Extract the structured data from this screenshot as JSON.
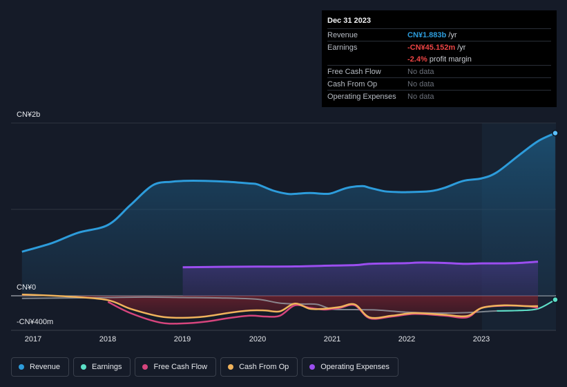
{
  "tooltip": {
    "date": "Dec 31 2023",
    "rows": [
      {
        "label": "Revenue",
        "value": "CN¥1.883b",
        "unit": "/yr",
        "color": "#2d9cdb"
      },
      {
        "label": "Earnings",
        "value": "-CN¥45.152m",
        "unit": "/yr",
        "color": "#ee4444"
      },
      {
        "label": "",
        "value": "-2.4%",
        "unit": "profit margin",
        "color": "#ee4444"
      },
      {
        "label": "Free Cash Flow",
        "value": "No data"
      },
      {
        "label": "Cash From Op",
        "value": "No data"
      },
      {
        "label": "Operating Expenses",
        "value": "No data"
      }
    ]
  },
  "colors": {
    "background": "#151b28",
    "revenue": "#2d9cdb",
    "earnings": "#5ce0c8",
    "free_cash_flow": "#d6457d",
    "cash_from_op": "#f0b35c",
    "operating_expenses": "#9b4ef0"
  },
  "legend": [
    {
      "label": "Revenue",
      "color": "#2d9cdb",
      "icon": "revenue-dot-icon"
    },
    {
      "label": "Earnings",
      "color": "#5ce0c8",
      "icon": "earnings-dot-icon"
    },
    {
      "label": "Free Cash Flow",
      "color": "#d6457d",
      "icon": "free-cash-flow-dot-icon"
    },
    {
      "label": "Cash From Op",
      "color": "#f0b35c",
      "icon": "cash-from-op-dot-icon"
    },
    {
      "label": "Operating Expenses",
      "color": "#9b4ef0",
      "icon": "operating-expenses-dot-icon"
    }
  ],
  "chart_data": {
    "type": "area",
    "y_tick_labels": [
      "CN¥2b",
      "CN¥0",
      "-CN¥400m"
    ],
    "y_ticks": [
      2000,
      0,
      -400
    ],
    "ylim": [
      -400,
      2000
    ],
    "xlim": [
      2016.85,
      2023.98
    ],
    "x_tick_labels": [
      "2017",
      "2018",
      "2019",
      "2020",
      "2021",
      "2022",
      "2023"
    ],
    "x_ticks": [
      2017,
      2018,
      2019,
      2020,
      2021,
      2022,
      2023
    ],
    "grid": true,
    "legend_position": "bottom",
    "highlight_start": 2023,
    "series": [
      {
        "name": "Revenue",
        "x": [
          2016.85,
          2017.25,
          2017.6,
          2018.0,
          2018.3,
          2018.6,
          2018.85,
          2019.0,
          2019.3,
          2019.6,
          2019.9,
          2020.0,
          2020.2,
          2020.4,
          2020.5,
          2020.7,
          2020.9,
          2021.0,
          2021.2,
          2021.4,
          2021.5,
          2021.7,
          2021.9,
          2022.0,
          2022.3,
          2022.5,
          2022.75,
          2023.0,
          2023.2,
          2023.5,
          2023.75,
          2023.98
        ],
        "y": [
          510,
          610,
          730,
          820,
          1050,
          1280,
          1320,
          1330,
          1330,
          1320,
          1300,
          1290,
          1220,
          1180,
          1180,
          1190,
          1180,
          1190,
          1250,
          1270,
          1250,
          1210,
          1200,
          1200,
          1210,
          1250,
          1330,
          1360,
          1430,
          1630,
          1790,
          1883
        ]
      },
      {
        "name": "Earnings",
        "x": [
          2016.85,
          2017.5,
          2018.0,
          2018.5,
          2019.0,
          2019.5,
          2020.0,
          2020.3,
          2020.6,
          2020.8,
          2021.0,
          2021.3,
          2021.6,
          2022.0,
          2022.4,
          2022.8,
          2023.2,
          2023.5,
          2023.75,
          2023.98
        ],
        "y": [
          -30,
          -25,
          -20,
          -15,
          -20,
          -25,
          -40,
          -85,
          -95,
          -100,
          -155,
          -160,
          -165,
          -190,
          -200,
          -195,
          -175,
          -170,
          -150,
          -45
        ]
      },
      {
        "name": "Free Cash Flow",
        "x": [
          2018.0,
          2018.3,
          2018.7,
          2019.0,
          2019.3,
          2019.6,
          2019.9,
          2020.1,
          2020.3,
          2020.5,
          2020.7,
          2020.9,
          2021.1,
          2021.3,
          2021.5,
          2021.8,
          2022.1,
          2022.5,
          2022.8,
          2023.0,
          2023.3,
          2023.6,
          2023.75
        ],
        "y": [
          -70,
          -200,
          -310,
          -320,
          -300,
          -260,
          -230,
          -240,
          -230,
          -110,
          -140,
          -160,
          -140,
          -110,
          -260,
          -240,
          -210,
          -230,
          -250,
          -140,
          -115,
          -120,
          -140
        ]
      },
      {
        "name": "Cash From Op",
        "x": [
          2016.85,
          2017.5,
          2018.0,
          2018.3,
          2018.7,
          2019.0,
          2019.3,
          2019.6,
          2019.9,
          2020.1,
          2020.3,
          2020.5,
          2020.7,
          2020.9,
          2021.1,
          2021.3,
          2021.5,
          2021.8,
          2022.1,
          2022.5,
          2022.8,
          2023.0,
          2023.3,
          2023.6,
          2023.75
        ],
        "y": [
          15,
          -10,
          -50,
          -150,
          -240,
          -255,
          -240,
          -200,
          -170,
          -170,
          -180,
          -90,
          -150,
          -150,
          -130,
          -100,
          -250,
          -230,
          -200,
          -220,
          -235,
          -140,
          -110,
          -120,
          -120
        ]
      },
      {
        "name": "Operating Expenses",
        "x": [
          2019.0,
          2019.5,
          2020.0,
          2020.5,
          2021.0,
          2021.3,
          2021.5,
          2021.8,
          2022.0,
          2022.2,
          2022.5,
          2022.75,
          2023.0,
          2023.3,
          2023.5,
          2023.75
        ],
        "y": [
          330,
          335,
          338,
          340,
          350,
          355,
          370,
          375,
          378,
          385,
          380,
          370,
          375,
          375,
          380,
          395
        ]
      }
    ]
  }
}
